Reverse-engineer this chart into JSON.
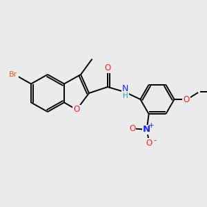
{
  "background_color": "#ebebeb",
  "figsize": [
    3.0,
    3.0
  ],
  "dpi": 100,
  "atom_colors": {
    "C": "#000000",
    "N": "#2020ff",
    "O": "#ff2020",
    "Br": "#d46010",
    "H": "#20a0a0"
  },
  "bond_color": "#000000",
  "bond_width": 1.4,
  "font_size": 7.5,
  "xlim": [
    0,
    10
  ],
  "ylim": [
    0,
    10
  ],
  "scale": 1.0
}
